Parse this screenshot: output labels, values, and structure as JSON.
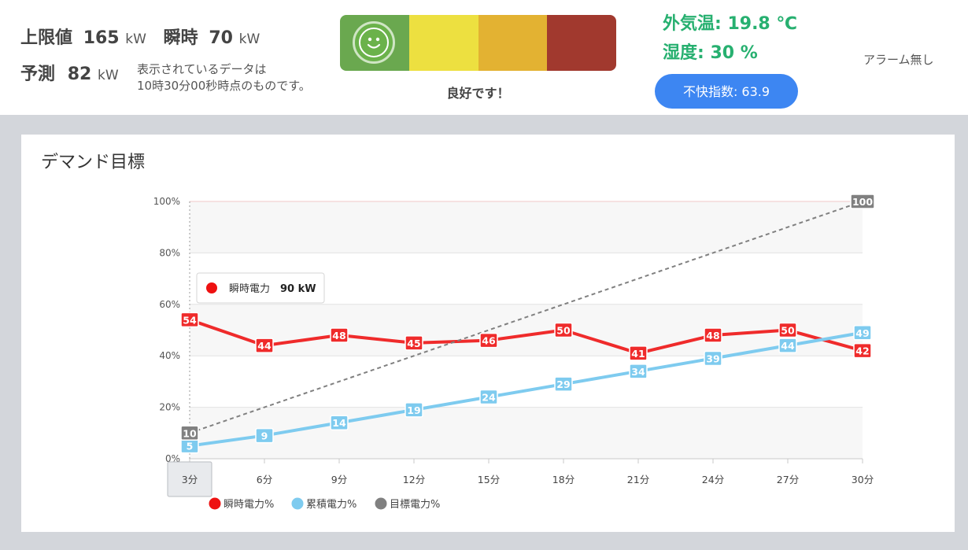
{
  "header": {
    "limit_label": "上限値",
    "limit_value": "165",
    "limit_unit": "kW",
    "instant_label": "瞬時",
    "instant_value": "70",
    "instant_unit": "kW",
    "forecast_label": "予測",
    "forecast_value": "82",
    "forecast_unit": "kW",
    "note_line1": "表示されているデータは",
    "note_line2": "10時30分00秒時点のものです。"
  },
  "meter": {
    "colors": [
      "#6aa84f",
      "#ede040",
      "#e3b232",
      "#a1392e"
    ],
    "status": "良好です！",
    "icon": "smiley-face-icon"
  },
  "weather": {
    "temp": "外気温: 19.8 ℃",
    "humidity": "湿度: 30 %",
    "discomfort": "不快指数: 63.9",
    "alarm": "アラーム無し"
  },
  "panel": {
    "title": "デマンド目標"
  },
  "tooltip": {
    "label": "瞬時電力",
    "value": "90 kW",
    "color": "#ee1111"
  },
  "chart_data": {
    "type": "line",
    "categories": [
      "3分",
      "6分",
      "9分",
      "12分",
      "15分",
      "18分",
      "21分",
      "24分",
      "27分",
      "30分"
    ],
    "ylim": [
      0,
      100
    ],
    "yticks": [
      "0%",
      "20%",
      "40%",
      "60%",
      "80%",
      "100%"
    ],
    "grid": true,
    "legend_position": "bottom-left",
    "series": [
      {
        "name": "瞬時電力%",
        "color": "#ef2b2b",
        "values": [
          54,
          44,
          48,
          45,
          46,
          50,
          41,
          48,
          50,
          42
        ]
      },
      {
        "name": "累積電力%",
        "color": "#7ecbef",
        "values": [
          5,
          9,
          14,
          19,
          24,
          29,
          34,
          39,
          44,
          49
        ]
      },
      {
        "name": "目標電力%",
        "color": "#808080",
        "values": [
          10,
          null,
          null,
          null,
          null,
          null,
          null,
          null,
          null,
          100
        ],
        "dashed": true
      }
    ]
  }
}
